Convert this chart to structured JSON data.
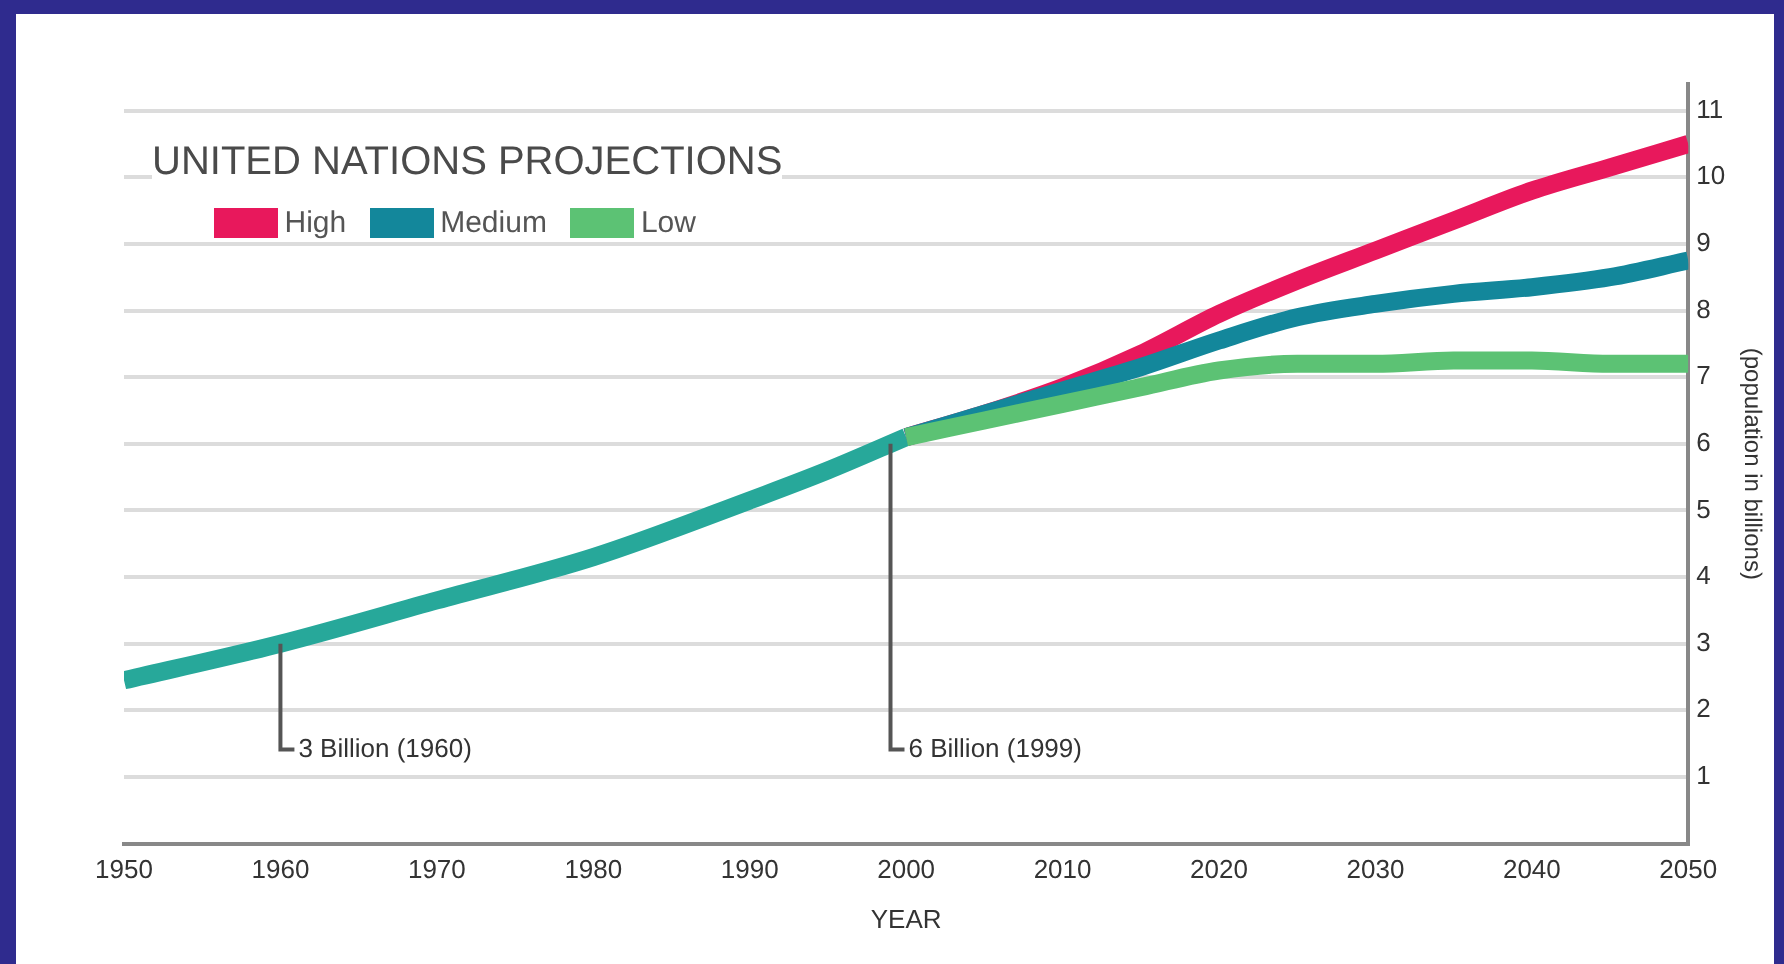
{
  "chart_data": {
    "type": "line",
    "title": "UNITED NATIONS PROJECTIONS",
    "xlabel": "YEAR",
    "ylabel": "(population in billions)",
    "xlim": [
      1950,
      2050
    ],
    "xticks": [
      1950,
      1960,
      1970,
      1980,
      1990,
      2000,
      2010,
      2020,
      2030,
      2040,
      2050
    ],
    "ylim": [
      0,
      11.4
    ],
    "yticks": [
      1,
      2,
      3,
      4,
      5,
      6,
      7,
      8,
      9,
      10,
      11
    ],
    "grid": "y",
    "legend": "top left",
    "series": [
      {
        "color": "#27a89a",
        "x": [
          1950,
          1960,
          1970,
          1980,
          1990,
          1995,
          2000
        ],
        "values": [
          2.45,
          3.0,
          3.65,
          4.3,
          5.15,
          5.6,
          6.1
        ]
      },
      {
        "name": "High",
        "color": "#e8185c",
        "x": [
          2000,
          2005,
          2010,
          2015,
          2020,
          2025,
          2030,
          2035,
          2040,
          2045,
          2050
        ],
        "values": [
          6.1,
          6.45,
          6.85,
          7.35,
          7.95,
          8.45,
          8.9,
          9.35,
          9.8,
          10.15,
          10.5
        ]
      },
      {
        "name": "Medium",
        "color": "#13879b",
        "x": [
          2000,
          2005,
          2010,
          2015,
          2020,
          2025,
          2030,
          2035,
          2040,
          2045,
          2050
        ],
        "values": [
          6.1,
          6.45,
          6.8,
          7.15,
          7.55,
          7.9,
          8.1,
          8.25,
          8.35,
          8.5,
          8.75
        ]
      },
      {
        "name": "Low",
        "color": "#5cc274",
        "x": [
          2000,
          2005,
          2010,
          2015,
          2020,
          2025,
          2030,
          2035,
          2040,
          2045,
          2050
        ],
        "values": [
          6.1,
          6.35,
          6.6,
          6.85,
          7.1,
          7.2,
          7.2,
          7.25,
          7.25,
          7.2,
          7.2
        ]
      }
    ],
    "annotations": [
      {
        "text": "3 Billion (1960)",
        "x": 1960,
        "y": 3
      },
      {
        "text": "6 Billion (1999)",
        "x": 1999,
        "y": 6
      }
    ]
  }
}
